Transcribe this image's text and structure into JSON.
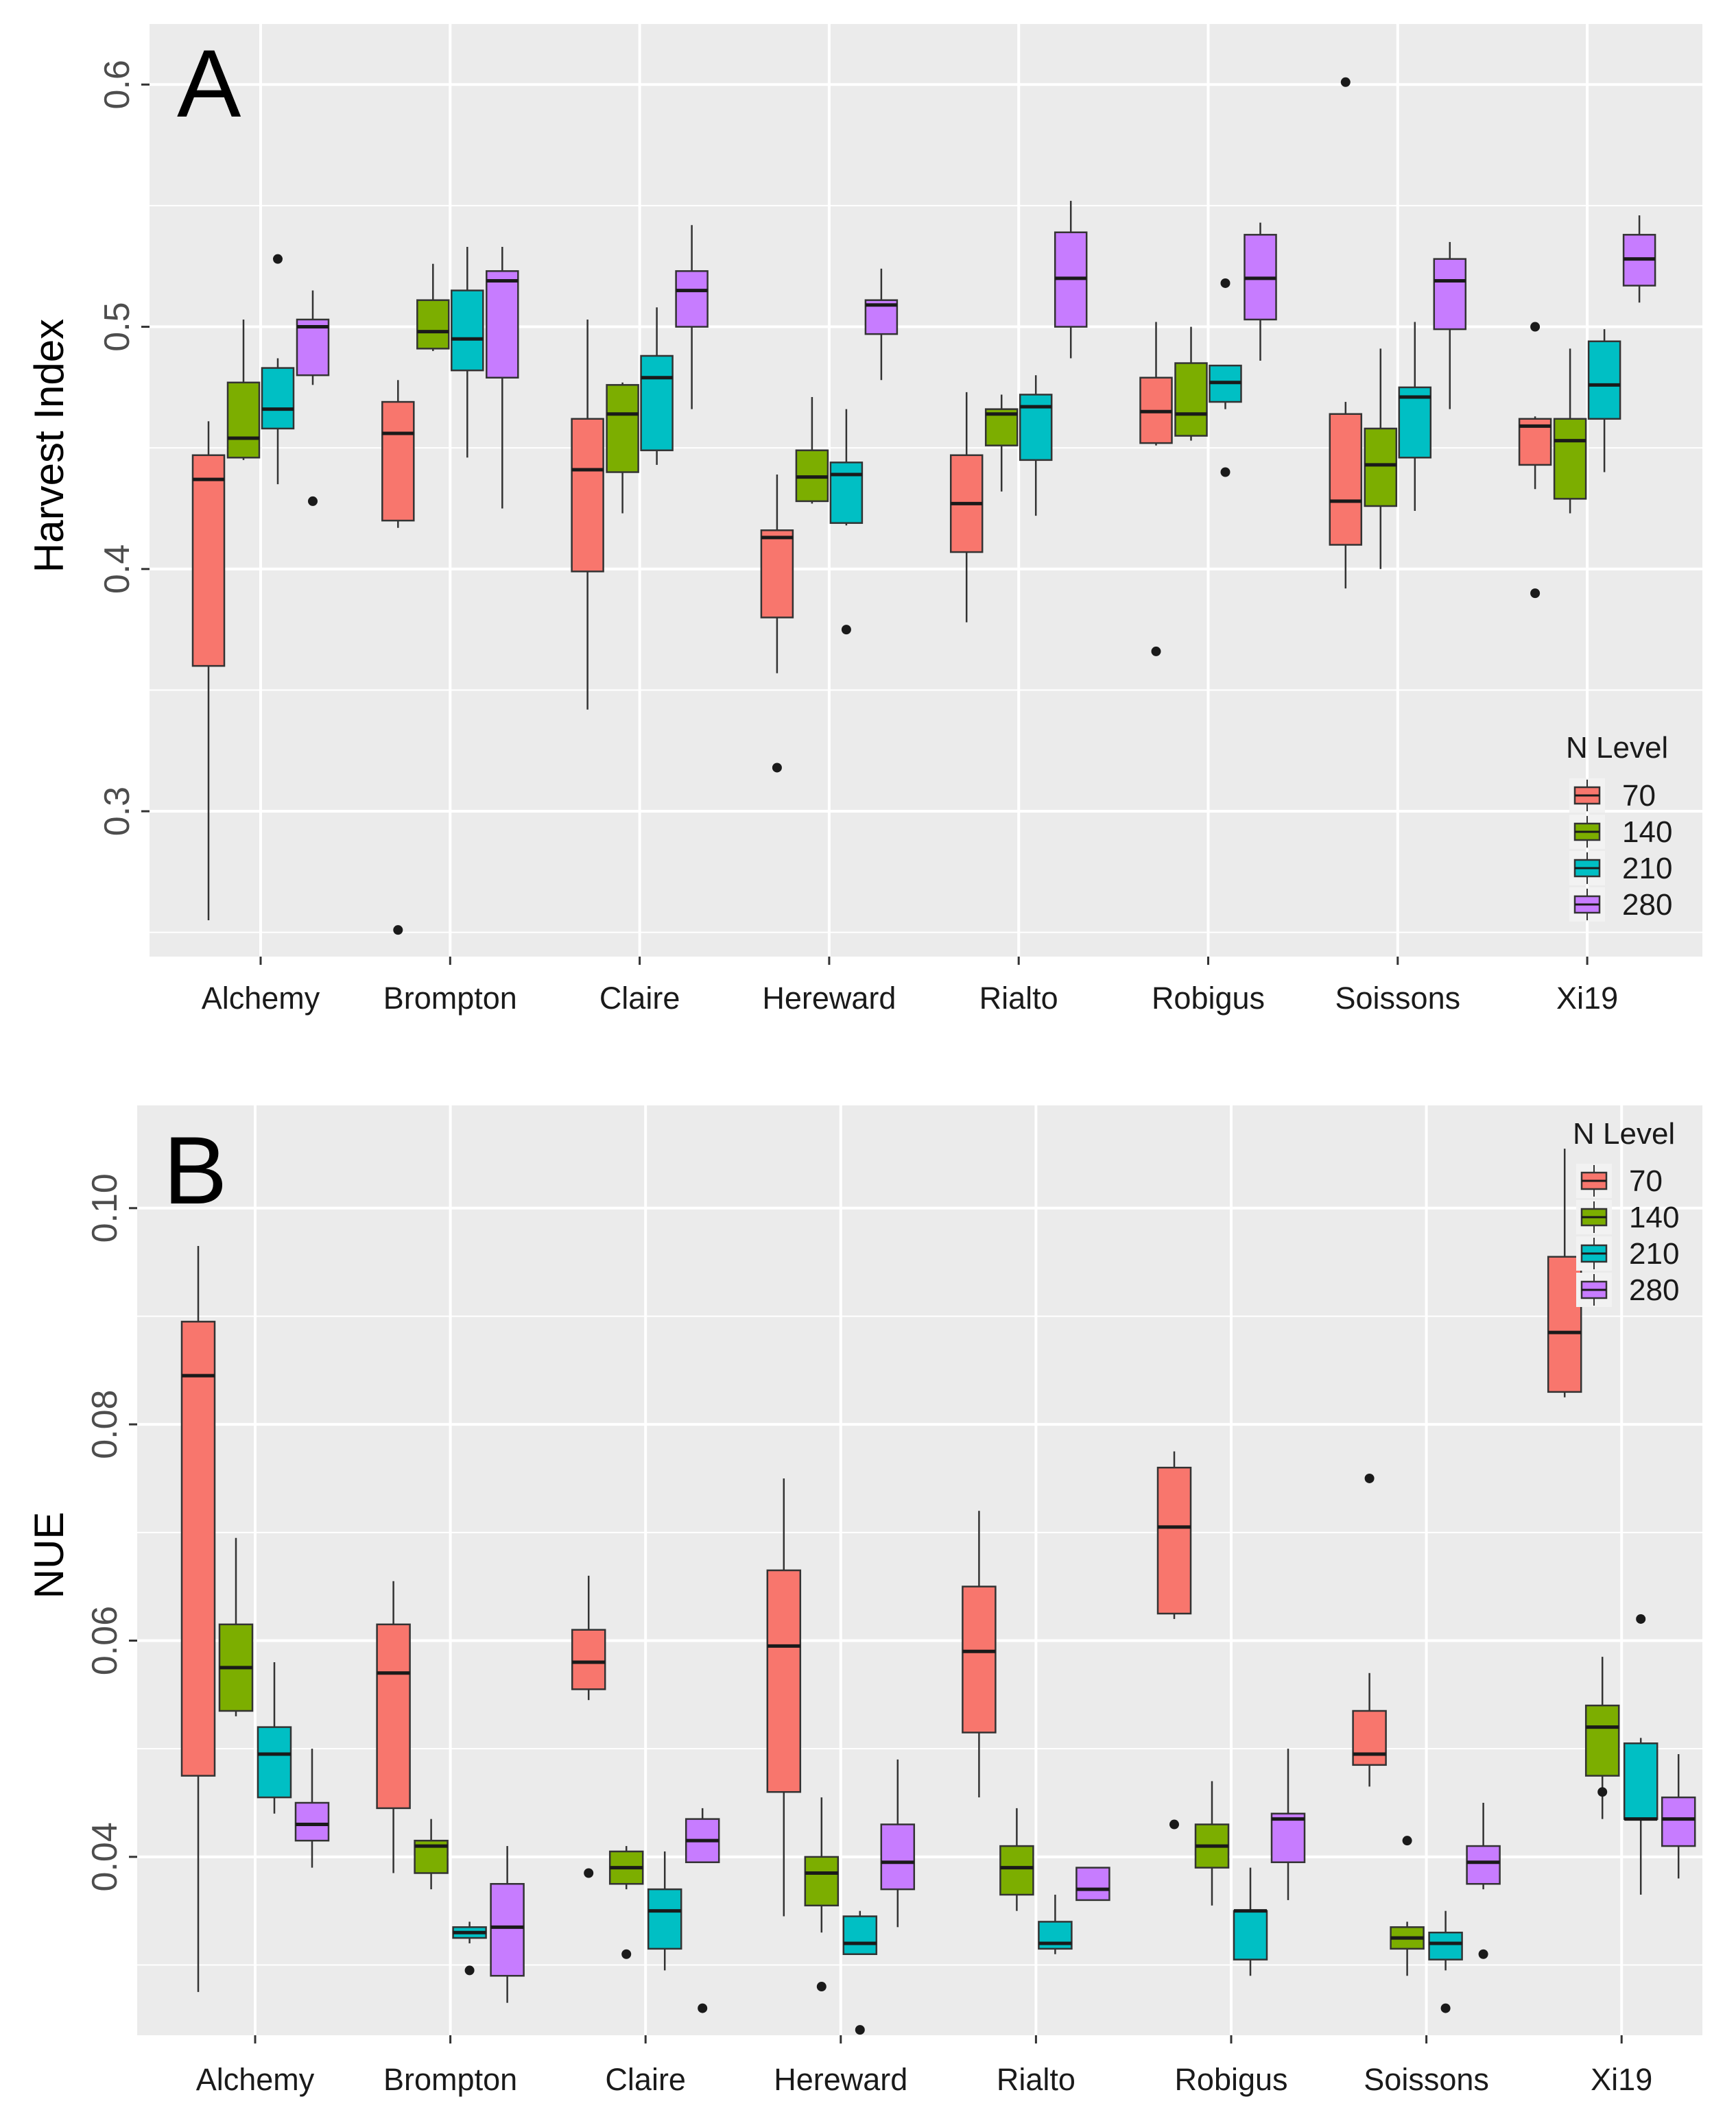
{
  "colors": {
    "panel_bg": "#EBEBEB",
    "grid": "#FFFFFF",
    "box_outline": "#333333",
    "N70": "#F8766D",
    "N140": "#7CAE00",
    "N210": "#00BFC4",
    "N280": "#C77CFF"
  },
  "chart_data": [
    {
      "type": "boxplot",
      "panel": "A",
      "ylabel": "Harvest Index",
      "xlabel": "",
      "ylim": [
        0.24,
        0.625
      ],
      "yticks": [
        0.3,
        0.4,
        0.5,
        0.6
      ],
      "ytick_labels": [
        "0.3",
        "0.4",
        "0.5",
        "0.6"
      ],
      "categories": [
        "Alchemy",
        "Brompton",
        "Claire",
        "Hereward",
        "Rialto",
        "Robigus",
        "Soissons",
        "Xi19"
      ],
      "legend": {
        "title": "N Level",
        "entries": [
          "70",
          "140",
          "210",
          "280"
        ],
        "position": "bottom-right"
      },
      "series": [
        {
          "name": "70",
          "color": "#F8766D",
          "boxes": [
            {
              "min": 0.255,
              "q1": 0.36,
              "median": 0.437,
              "q3": 0.447,
              "max": 0.461,
              "outliers": []
            },
            {
              "min": 0.417,
              "q1": 0.42,
              "median": 0.456,
              "q3": 0.469,
              "max": 0.478,
              "outliers": [
                0.251
              ]
            },
            {
              "min": 0.342,
              "q1": 0.399,
              "median": 0.441,
              "q3": 0.462,
              "max": 0.503,
              "outliers": []
            },
            {
              "min": 0.357,
              "q1": 0.38,
              "median": 0.413,
              "q3": 0.416,
              "max": 0.439,
              "outliers": [
                0.318
              ]
            },
            {
              "min": 0.378,
              "q1": 0.407,
              "median": 0.427,
              "q3": 0.447,
              "max": 0.473,
              "outliers": []
            },
            {
              "min": 0.451,
              "q1": 0.452,
              "median": 0.465,
              "q3": 0.479,
              "max": 0.502,
              "outliers": [
                0.366
              ]
            },
            {
              "min": 0.392,
              "q1": 0.41,
              "median": 0.428,
              "q3": 0.464,
              "max": 0.469,
              "outliers": [
                0.601
              ]
            },
            {
              "min": 0.433,
              "q1": 0.443,
              "median": 0.459,
              "q3": 0.462,
              "max": 0.463,
              "outliers": [
                0.39,
                0.5
              ]
            }
          ]
        },
        {
          "name": "140",
          "color": "#7CAE00",
          "boxes": [
            {
              "min": 0.445,
              "q1": 0.446,
              "median": 0.454,
              "q3": 0.477,
              "max": 0.503,
              "outliers": []
            },
            {
              "min": 0.49,
              "q1": 0.491,
              "median": 0.498,
              "q3": 0.511,
              "max": 0.526,
              "outliers": []
            },
            {
              "min": 0.423,
              "q1": 0.44,
              "median": 0.464,
              "q3": 0.476,
              "max": 0.477,
              "outliers": []
            },
            {
              "min": 0.427,
              "q1": 0.428,
              "median": 0.438,
              "q3": 0.449,
              "max": 0.471,
              "outliers": []
            },
            {
              "min": 0.432,
              "q1": 0.451,
              "median": 0.464,
              "q3": 0.466,
              "max": 0.472,
              "outliers": []
            },
            {
              "min": 0.453,
              "q1": 0.455,
              "median": 0.464,
              "q3": 0.485,
              "max": 0.5,
              "outliers": []
            },
            {
              "min": 0.4,
              "q1": 0.426,
              "median": 0.443,
              "q3": 0.458,
              "max": 0.491,
              "outliers": []
            },
            {
              "min": 0.423,
              "q1": 0.429,
              "median": 0.453,
              "q3": 0.462,
              "max": 0.491,
              "outliers": []
            }
          ]
        },
        {
          "name": "210",
          "color": "#00BFC4",
          "boxes": [
            {
              "min": 0.435,
              "q1": 0.458,
              "median": 0.466,
              "q3": 0.483,
              "max": 0.487,
              "outliers": [
                0.528
              ]
            },
            {
              "min": 0.446,
              "q1": 0.482,
              "median": 0.495,
              "q3": 0.515,
              "max": 0.533,
              "outliers": []
            },
            {
              "min": 0.443,
              "q1": 0.449,
              "median": 0.479,
              "q3": 0.488,
              "max": 0.508,
              "outliers": []
            },
            {
              "min": 0.418,
              "q1": 0.419,
              "median": 0.439,
              "q3": 0.444,
              "max": 0.466,
              "outliers": [
                0.375
              ]
            },
            {
              "min": 0.422,
              "q1": 0.445,
              "median": 0.467,
              "q3": 0.472,
              "max": 0.48,
              "outliers": []
            },
            {
              "min": 0.466,
              "q1": 0.469,
              "median": 0.477,
              "q3": 0.484,
              "max": 0.484,
              "outliers": [
                0.44,
                0.518
              ]
            },
            {
              "min": 0.424,
              "q1": 0.446,
              "median": 0.471,
              "q3": 0.475,
              "max": 0.502,
              "outliers": []
            },
            {
              "min": 0.44,
              "q1": 0.462,
              "median": 0.476,
              "q3": 0.494,
              "max": 0.499,
              "outliers": []
            }
          ]
        },
        {
          "name": "280",
          "color": "#C77CFF",
          "boxes": [
            {
              "min": 0.476,
              "q1": 0.48,
              "median": 0.5,
              "q3": 0.503,
              "max": 0.515,
              "outliers": [
                0.428
              ]
            },
            {
              "min": 0.425,
              "q1": 0.479,
              "median": 0.519,
              "q3": 0.523,
              "max": 0.533,
              "outliers": []
            },
            {
              "min": 0.466,
              "q1": 0.5,
              "median": 0.515,
              "q3": 0.523,
              "max": 0.542,
              "outliers": []
            },
            {
              "min": 0.478,
              "q1": 0.497,
              "median": 0.509,
              "q3": 0.511,
              "max": 0.524,
              "outliers": []
            },
            {
              "min": 0.487,
              "q1": 0.5,
              "median": 0.52,
              "q3": 0.539,
              "max": 0.552,
              "outliers": []
            },
            {
              "min": 0.486,
              "q1": 0.503,
              "median": 0.52,
              "q3": 0.538,
              "max": 0.543,
              "outliers": []
            },
            {
              "min": 0.466,
              "q1": 0.499,
              "median": 0.519,
              "q3": 0.528,
              "max": 0.535,
              "outliers": []
            },
            {
              "min": 0.51,
              "q1": 0.517,
              "median": 0.528,
              "q3": 0.538,
              "max": 0.546,
              "outliers": []
            }
          ]
        }
      ]
    },
    {
      "type": "boxplot",
      "panel": "B",
      "ylabel": "NUE",
      "xlabel": "",
      "ylim": [
        0.0235,
        0.1095
      ],
      "yticks": [
        0.04,
        0.06,
        0.08,
        0.1
      ],
      "ytick_labels": [
        "0.04",
        "0.06",
        "0.08",
        "0.10"
      ],
      "categories": [
        "Alchemy",
        "Brompton",
        "Claire",
        "Hereward",
        "Rialto",
        "Robigus",
        "Soissons",
        "Xi19"
      ],
      "legend": {
        "title": "N Level",
        "entries": [
          "70",
          "140",
          "210",
          "280"
        ],
        "position": "top-right"
      },
      "series": [
        {
          "name": "70",
          "color": "#F8766D",
          "boxes": [
            {
              "min": 0.0275,
              "q1": 0.0475,
              "median": 0.0845,
              "q3": 0.0895,
              "max": 0.0965,
              "outliers": []
            },
            {
              "min": 0.0385,
              "q1": 0.0445,
              "median": 0.057,
              "q3": 0.0615,
              "max": 0.0655,
              "outliers": []
            },
            {
              "min": 0.0545,
              "q1": 0.0555,
              "median": 0.058,
              "q3": 0.061,
              "max": 0.066,
              "outliers": [
                0.0385
              ]
            },
            {
              "min": 0.0345,
              "q1": 0.046,
              "median": 0.0595,
              "q3": 0.0665,
              "max": 0.075,
              "outliers": []
            },
            {
              "min": 0.0455,
              "q1": 0.0515,
              "median": 0.059,
              "q3": 0.065,
              "max": 0.072,
              "outliers": []
            },
            {
              "min": 0.062,
              "q1": 0.0625,
              "median": 0.0705,
              "q3": 0.076,
              "max": 0.0775,
              "outliers": [
                0.043
              ]
            },
            {
              "min": 0.0465,
              "q1": 0.0485,
              "median": 0.0495,
              "q3": 0.0535,
              "max": 0.057,
              "outliers": [
                0.075
              ]
            },
            {
              "min": 0.0825,
              "q1": 0.083,
              "median": 0.0885,
              "q3": 0.0955,
              "max": 0.1055,
              "outliers": []
            }
          ]
        },
        {
          "name": "140",
          "color": "#7CAE00",
          "boxes": [
            {
              "min": 0.053,
              "q1": 0.0535,
              "median": 0.0575,
              "q3": 0.0615,
              "max": 0.0695,
              "outliers": []
            },
            {
              "min": 0.037,
              "q1": 0.0385,
              "median": 0.041,
              "q3": 0.0415,
              "max": 0.0435,
              "outliers": []
            },
            {
              "min": 0.037,
              "q1": 0.0375,
              "median": 0.039,
              "q3": 0.0405,
              "max": 0.041,
              "outliers": [
                0.031
              ]
            },
            {
              "min": 0.033,
              "q1": 0.0355,
              "median": 0.0385,
              "q3": 0.04,
              "max": 0.0455,
              "outliers": [
                0.028
              ]
            },
            {
              "min": 0.035,
              "q1": 0.0365,
              "median": 0.039,
              "q3": 0.041,
              "max": 0.0445,
              "outliers": []
            },
            {
              "min": 0.0355,
              "q1": 0.039,
              "median": 0.041,
              "q3": 0.043,
              "max": 0.047,
              "outliers": []
            },
            {
              "min": 0.029,
              "q1": 0.0315,
              "median": 0.0325,
              "q3": 0.0335,
              "max": 0.034,
              "outliers": [
                0.0415
              ]
            },
            {
              "min": 0.0435,
              "q1": 0.0475,
              "median": 0.052,
              "q3": 0.054,
              "max": 0.0585,
              "outliers": [
                0.046
              ]
            }
          ]
        },
        {
          "name": "210",
          "color": "#00BFC4",
          "boxes": [
            {
              "min": 0.044,
              "q1": 0.0455,
              "median": 0.0495,
              "q3": 0.052,
              "max": 0.058,
              "outliers": []
            },
            {
              "min": 0.032,
              "q1": 0.0325,
              "median": 0.033,
              "q3": 0.0335,
              "max": 0.034,
              "outliers": [
                0.0295
              ]
            },
            {
              "min": 0.0295,
              "q1": 0.0315,
              "median": 0.035,
              "q3": 0.037,
              "max": 0.0405,
              "outliers": []
            },
            {
              "min": 0.031,
              "q1": 0.031,
              "median": 0.032,
              "q3": 0.0345,
              "max": 0.035,
              "outliers": [
                0.024
              ]
            },
            {
              "min": 0.031,
              "q1": 0.0315,
              "median": 0.032,
              "q3": 0.034,
              "max": 0.0365,
              "outliers": []
            },
            {
              "min": 0.029,
              "q1": 0.0305,
              "median": 0.035,
              "q3": 0.035,
              "max": 0.039,
              "outliers": []
            },
            {
              "min": 0.0295,
              "q1": 0.0305,
              "median": 0.032,
              "q3": 0.033,
              "max": 0.035,
              "outliers": [
                0.026
              ]
            },
            {
              "min": 0.0365,
              "q1": 0.0435,
              "median": 0.0435,
              "q3": 0.0505,
              "max": 0.051,
              "outliers": [
                0.062
              ]
            }
          ]
        },
        {
          "name": "280",
          "color": "#C77CFF",
          "boxes": [
            {
              "min": 0.039,
              "q1": 0.0415,
              "median": 0.043,
              "q3": 0.045,
              "max": 0.05,
              "outliers": []
            },
            {
              "min": 0.0265,
              "q1": 0.029,
              "median": 0.0335,
              "q3": 0.0375,
              "max": 0.041,
              "outliers": []
            },
            {
              "min": 0.0395,
              "q1": 0.0395,
              "median": 0.0415,
              "q3": 0.0435,
              "max": 0.0445,
              "outliers": [
                0.026
              ]
            },
            {
              "min": 0.0335,
              "q1": 0.037,
              "median": 0.0395,
              "q3": 0.043,
              "max": 0.049,
              "outliers": []
            },
            {
              "min": 0.036,
              "q1": 0.036,
              "median": 0.037,
              "q3": 0.039,
              "max": 0.039,
              "outliers": []
            },
            {
              "min": 0.036,
              "q1": 0.0395,
              "median": 0.0435,
              "q3": 0.044,
              "max": 0.05,
              "outliers": []
            },
            {
              "min": 0.037,
              "q1": 0.0375,
              "median": 0.0395,
              "q3": 0.041,
              "max": 0.045,
              "outliers": [
                0.031
              ]
            },
            {
              "min": 0.038,
              "q1": 0.041,
              "median": 0.0435,
              "q3": 0.0455,
              "max": 0.0495,
              "outliers": []
            }
          ]
        }
      ]
    }
  ]
}
